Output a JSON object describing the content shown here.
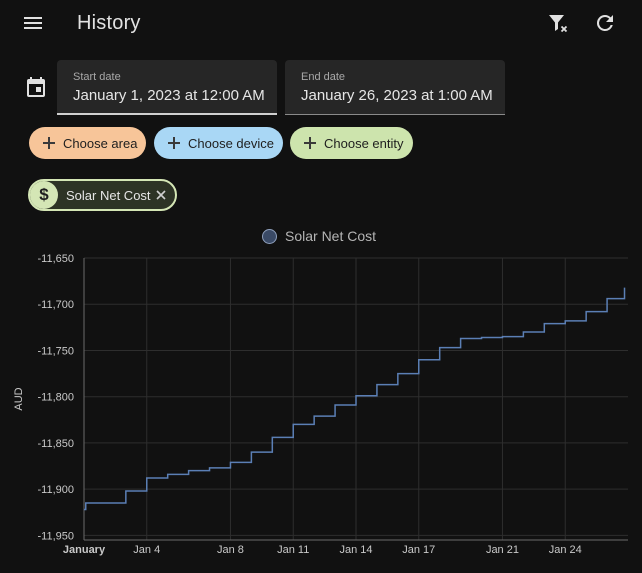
{
  "header": {
    "title": "History",
    "menu_icon": "menu-icon",
    "clear_filter_icon": "filter-remove-icon",
    "refresh_icon": "refresh-icon"
  },
  "date_range": {
    "calendar_icon": "calendar-icon",
    "start": {
      "label": "Start date",
      "value": "January 1, 2023 at 12:00 AM"
    },
    "end": {
      "label": "End date",
      "value": "January 26, 2023 at 1:00 AM"
    }
  },
  "target_pickers": [
    {
      "label": "Choose area",
      "color": "#f7c599"
    },
    {
      "label": "Choose device",
      "color": "#a9d7f5"
    },
    {
      "label": "Choose entity",
      "color": "#cde4ad"
    }
  ],
  "selected_entity": {
    "label": "Solar Net Cost",
    "icon": "currency-usd-icon",
    "color": "#d4e6b5"
  },
  "chart_data": {
    "type": "line",
    "legend": [
      "Solar Net Cost"
    ],
    "legend_placement": "top-center",
    "ylabel": "AUD",
    "ylim": [
      -11955,
      -11650
    ],
    "yticks": [
      -11650,
      -11700,
      -11750,
      -11800,
      -11850,
      -11900,
      -11950
    ],
    "ytick_labels": [
      "-11,650",
      "-11,700",
      "-11,750",
      "-11,800",
      "-11,850",
      "-11,900",
      "-11,950"
    ],
    "xlim": [
      "2023-01-01",
      "2023-01-26"
    ],
    "xticks": [
      {
        "date": "2023-01-01",
        "label": "January",
        "bold": true
      },
      {
        "date": "2023-01-04",
        "label": "Jan 4"
      },
      {
        "date": "2023-01-08",
        "label": "Jan 8"
      },
      {
        "date": "2023-01-11",
        "label": "Jan 11"
      },
      {
        "date": "2023-01-14",
        "label": "Jan 14"
      },
      {
        "date": "2023-01-17",
        "label": "Jan 17"
      },
      {
        "date": "2023-01-21",
        "label": "Jan 21"
      },
      {
        "date": "2023-01-24",
        "label": "Jan 24"
      }
    ],
    "grid": true,
    "series": [
      {
        "name": "Solar Net Cost",
        "color": "#5b7fb5",
        "step": true,
        "points": [
          [
            "2023-01-01T00:00",
            -11922
          ],
          [
            "2023-01-01T02:00",
            -11915
          ],
          [
            "2023-01-03T00:00",
            -11902
          ],
          [
            "2023-01-04T00:00",
            -11888
          ],
          [
            "2023-01-05T00:00",
            -11884
          ],
          [
            "2023-01-06T00:00",
            -11880
          ],
          [
            "2023-01-07T00:00",
            -11877
          ],
          [
            "2023-01-08T00:00",
            -11871
          ],
          [
            "2023-01-09T00:00",
            -11860
          ],
          [
            "2023-01-10T00:00",
            -11844
          ],
          [
            "2023-01-11T00:00",
            -11830
          ],
          [
            "2023-01-12T00:00",
            -11821
          ],
          [
            "2023-01-13T00:00",
            -11809
          ],
          [
            "2023-01-14T00:00",
            -11799
          ],
          [
            "2023-01-15T00:00",
            -11787
          ],
          [
            "2023-01-16T00:00",
            -11775
          ],
          [
            "2023-01-17T00:00",
            -11760
          ],
          [
            "2023-01-18T00:00",
            -11747
          ],
          [
            "2023-01-19T00:00",
            -11737
          ],
          [
            "2023-01-20T00:00",
            -11736
          ],
          [
            "2023-01-21T00:00",
            -11735
          ],
          [
            "2023-01-22T00:00",
            -11730
          ],
          [
            "2023-01-23T00:00",
            -11721
          ],
          [
            "2023-01-24T00:00",
            -11718
          ],
          [
            "2023-01-25T00:00",
            -11708
          ],
          [
            "2023-01-26T00:00",
            -11694
          ],
          [
            "2023-01-26T20:00",
            -11682
          ]
        ]
      }
    ]
  }
}
